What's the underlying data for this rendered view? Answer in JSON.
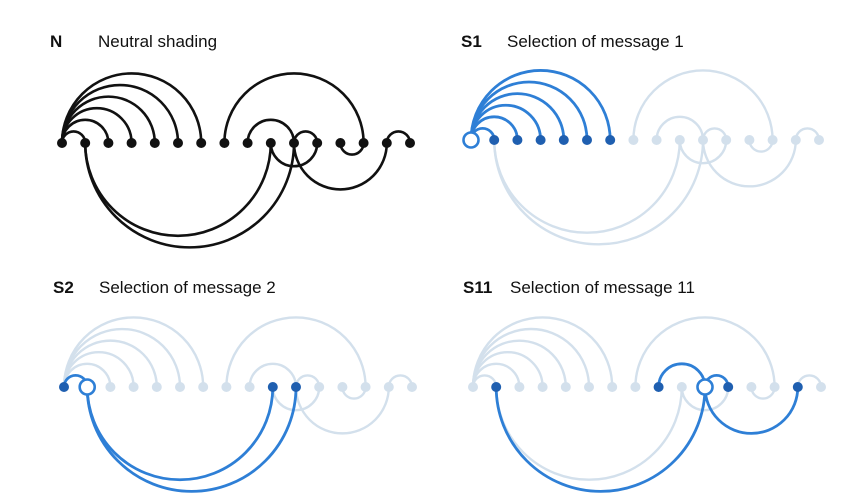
{
  "colors": {
    "neutral": "#111111",
    "selected": "#2e7fd6",
    "selected_dark": "#1f5fb0",
    "related": "#a9d7f0",
    "faint": "#d3e0ec",
    "background": "#ffffff"
  },
  "diagram": {
    "node_count": 16,
    "arcs": [
      {
        "from": 1,
        "to": 2,
        "side": "top"
      },
      {
        "from": 1,
        "to": 3,
        "side": "top"
      },
      {
        "from": 1,
        "to": 4,
        "side": "top"
      },
      {
        "from": 1,
        "to": 5,
        "side": "top"
      },
      {
        "from": 1,
        "to": 6,
        "side": "top"
      },
      {
        "from": 1,
        "to": 7,
        "side": "top"
      },
      {
        "from": 2,
        "to": 10,
        "side": "bottom"
      },
      {
        "from": 2,
        "to": 11,
        "side": "bottom"
      },
      {
        "from": 8,
        "to": 14,
        "side": "top"
      },
      {
        "from": 9,
        "to": 11,
        "side": "top"
      },
      {
        "from": 10,
        "to": 12,
        "side": "bottom"
      },
      {
        "from": 11,
        "to": 12,
        "side": "top"
      },
      {
        "from": 11,
        "to": 15,
        "side": "bottom"
      },
      {
        "from": 13,
        "to": 14,
        "side": "bottom"
      },
      {
        "from": 15,
        "to": 16,
        "side": "top"
      }
    ]
  },
  "panels": [
    {
      "tag": "N",
      "title": "Neutral shading",
      "selected": null
    },
    {
      "tag": "S1",
      "title": "Selection of message 1",
      "selected": 1
    },
    {
      "tag": "S2",
      "title": "Selection of message 2",
      "selected": 2
    },
    {
      "tag": "S11",
      "title": "Selection of message 11",
      "selected": 11
    }
  ]
}
